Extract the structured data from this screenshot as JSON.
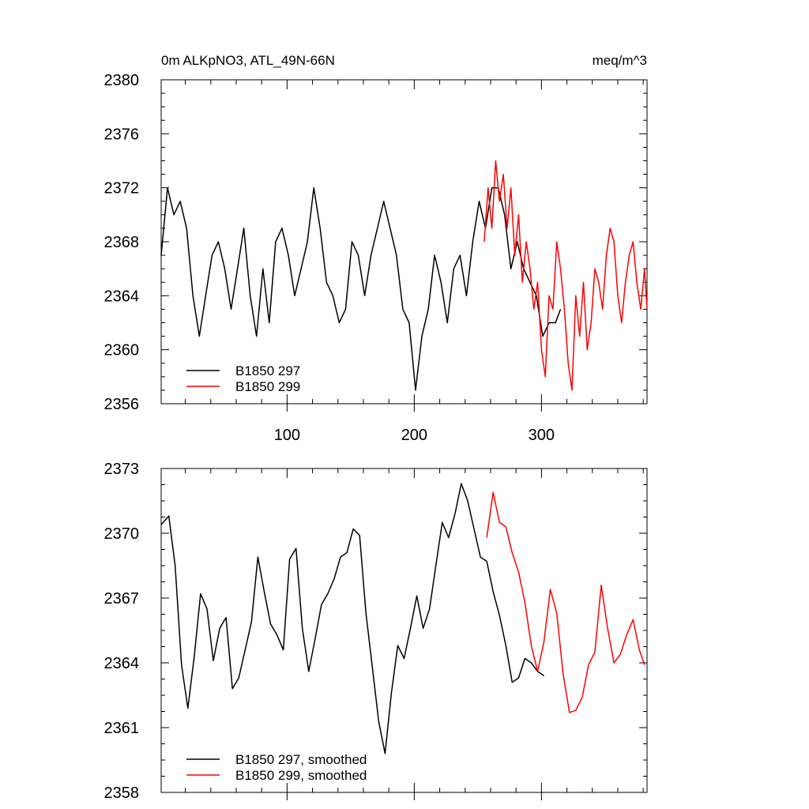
{
  "chart_data": [
    {
      "type": "line",
      "title_left": "0m ALKpNO3, ATL_49N-66N",
      "title_right": "meq/m^3",
      "xlabel": "",
      "ylabel": "",
      "xlim": [
        1,
        383
      ],
      "ylim": [
        2356,
        2380
      ],
      "yticks": [
        "2356",
        "2360",
        "2364",
        "2368",
        "2372",
        "2376",
        "2380"
      ],
      "xticks": [
        "100",
        "200",
        "300"
      ],
      "legend_position": "bottom-left",
      "series": [
        {
          "name": "B1850 297",
          "color": "#000000",
          "x": [
            1,
            6,
            11,
            16,
            21,
            26,
            31,
            36,
            41,
            46,
            51,
            56,
            61,
            66,
            71,
            76,
            81,
            86,
            91,
            96,
            101,
            106,
            111,
            116,
            121,
            126,
            131,
            136,
            141,
            146,
            151,
            156,
            161,
            166,
            171,
            176,
            181,
            186,
            191,
            196,
            201,
            206,
            211,
            216,
            221,
            226,
            231,
            236,
            241,
            246,
            251,
            256,
            261,
            266,
            271,
            276,
            281,
            286,
            291,
            296,
            301,
            306,
            311,
            315
          ],
          "values": [
            2367,
            2372,
            2370,
            2371,
            2369,
            2364,
            2361,
            2364,
            2367,
            2368,
            2366,
            2363,
            2366,
            2369,
            2364,
            2361,
            2366,
            2362,
            2368,
            2369,
            2367,
            2364,
            2366,
            2368,
            2372,
            2369,
            2365,
            2364,
            2362,
            2363,
            2368,
            2367,
            2364,
            2367,
            2369,
            2371,
            2369,
            2367,
            2363,
            2362,
            2357,
            2361,
            2363,
            2367,
            2365,
            2362,
            2366,
            2367,
            2364,
            2368,
            2371,
            2369,
            2372,
            2372,
            2370,
            2366,
            2368,
            2366,
            2365,
            2364,
            2361,
            2362,
            2362,
            2363
          ]
        },
        {
          "name": "B1850 299",
          "color": "#ff0000",
          "x": [
            255,
            258,
            261,
            264,
            267,
            270,
            273,
            276,
            279,
            282,
            285,
            288,
            291,
            294,
            297,
            300,
            303,
            306,
            309,
            312,
            315,
            318,
            321,
            324,
            327,
            330,
            333,
            336,
            339,
            342,
            345,
            348,
            351,
            354,
            357,
            360,
            363,
            366,
            369,
            372,
            375,
            378,
            381,
            383
          ],
          "values": [
            2368,
            2372,
            2369,
            2374,
            2371,
            2373,
            2369,
            2372,
            2367,
            2370,
            2365,
            2368,
            2366,
            2363,
            2365,
            2360,
            2358,
            2364,
            2363,
            2368,
            2366,
            2363,
            2359,
            2357,
            2364,
            2361,
            2365,
            2360,
            2362,
            2366,
            2365,
            2363,
            2367,
            2369,
            2368,
            2364,
            2362,
            2365,
            2367,
            2368,
            2365,
            2363,
            2366,
            2363
          ]
        }
      ]
    },
    {
      "type": "line",
      "title_left": "",
      "title_right": "",
      "xlabel": "",
      "ylabel": "",
      "xlim": [
        1,
        383
      ],
      "ylim": [
        2358,
        2373
      ],
      "yticks": [
        "2358",
        "2361",
        "2364",
        "2367",
        "2370",
        "2373"
      ],
      "xticks": [],
      "legend_position": "bottom-left",
      "series": [
        {
          "name": "B1850 297, smoothed",
          "color": "#000000",
          "x": [
            1,
            7,
            12,
            17,
            22,
            27,
            32,
            37,
            42,
            47,
            52,
            57,
            62,
            67,
            72,
            77,
            82,
            87,
            92,
            97,
            102,
            107,
            112,
            117,
            122,
            127,
            132,
            137,
            142,
            147,
            152,
            157,
            162,
            167,
            172,
            177,
            182,
            187,
            192,
            197,
            202,
            207,
            212,
            217,
            222,
            227,
            232,
            237,
            242,
            247,
            252,
            257,
            262,
            267,
            272,
            277,
            282,
            287,
            292,
            297,
            302
          ],
          "values": [
            2370.4,
            2370.8,
            2368.5,
            2363.9,
            2361.9,
            2364.3,
            2367.2,
            2366.5,
            2364.1,
            2365.6,
            2366.1,
            2362.8,
            2363.3,
            2364.6,
            2365.9,
            2368.9,
            2367.3,
            2365.8,
            2365.3,
            2364.6,
            2368.8,
            2369.3,
            2365.6,
            2363.6,
            2365.1,
            2366.7,
            2367.2,
            2367.9,
            2368.9,
            2369.1,
            2370.2,
            2369.9,
            2366.3,
            2363.8,
            2361.3,
            2359.8,
            2362.6,
            2364.8,
            2364.2,
            2365.6,
            2367.1,
            2365.6,
            2366.5,
            2368.5,
            2370.5,
            2369.8,
            2370.9,
            2372.3,
            2371.5,
            2370.2,
            2368.9,
            2368.7,
            2367.3,
            2366.2,
            2364.8,
            2363.1,
            2363.3,
            2364.2,
            2364.0,
            2363.6,
            2363.4
          ]
        },
        {
          "name": "B1850 299, smoothed",
          "color": "#ff0000",
          "x": [
            257,
            262,
            267,
            272,
            277,
            282,
            287,
            292,
            297,
            302,
            307,
            312,
            317,
            322,
            327,
            332,
            337,
            342,
            347,
            352,
            357,
            362,
            367,
            372,
            377,
            381
          ],
          "values": [
            2369.8,
            2371.9,
            2370.5,
            2370.3,
            2369.1,
            2368.2,
            2366.8,
            2364.8,
            2363.6,
            2365.0,
            2367.4,
            2366.3,
            2363.5,
            2361.7,
            2361.8,
            2362.4,
            2363.9,
            2364.5,
            2367.6,
            2365.6,
            2364.0,
            2364.4,
            2365.3,
            2366.0,
            2364.6,
            2363.9
          ]
        }
      ]
    }
  ]
}
